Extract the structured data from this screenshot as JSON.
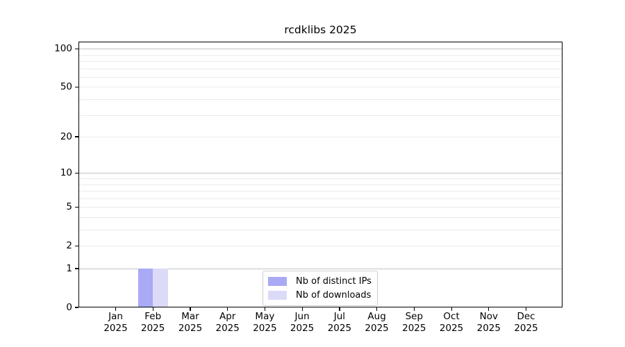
{
  "chart_data": {
    "type": "bar",
    "title": "rcdklibs 2025",
    "categories": [
      "Jan",
      "Feb",
      "Mar",
      "Apr",
      "May",
      "Jun",
      "Jul",
      "Aug",
      "Sep",
      "Oct",
      "Nov",
      "Dec"
    ],
    "x_tick_second_line": "2025",
    "series": [
      {
        "name": "Nb of distinct IPs",
        "color": "#a9a9f5",
        "values": [
          0,
          1,
          0,
          0,
          0,
          0,
          0,
          0,
          0,
          0,
          0,
          0
        ]
      },
      {
        "name": "Nb of downloads",
        "color": "#dbdbf8",
        "values": [
          0,
          1,
          0,
          0,
          0,
          0,
          0,
          0,
          0,
          0,
          0,
          0
        ]
      }
    ],
    "xlabel": "",
    "ylabel": "",
    "y_scale": "log1p",
    "ylim": [
      0,
      114
    ],
    "y_ticks": [
      0,
      1,
      2,
      5,
      10,
      20,
      50,
      100
    ],
    "major_gridlines": [
      1,
      10,
      100
    ],
    "minor_gridlines": [
      2,
      3,
      4,
      5,
      6,
      7,
      8,
      9,
      20,
      30,
      40,
      50,
      60,
      70,
      80,
      90
    ],
    "grid": "on",
    "legend_position": "lower center"
  },
  "colors": {
    "background": "#ffffff",
    "axis": "#000000",
    "major_grid": "#c3c3c3",
    "minor_grid": "#ebebeb",
    "bar_distinct_ips": "#a9a9f5",
    "bar_downloads": "#dbdbf8",
    "legend_border": "#cccccc"
  }
}
